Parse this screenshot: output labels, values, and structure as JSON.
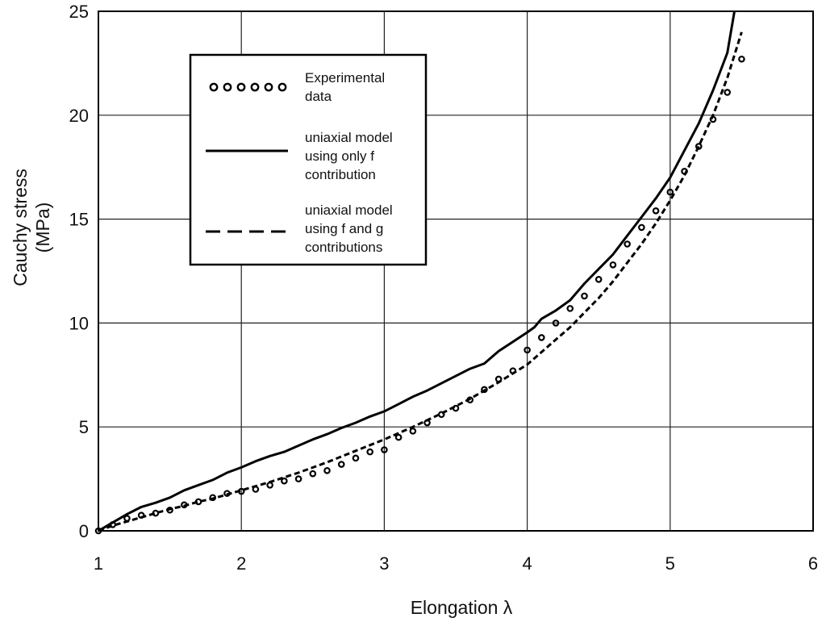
{
  "chart_data": {
    "type": "line",
    "title": "",
    "xlabel": "Elongation λ",
    "ylabel_lines": [
      "Cauchy stress",
      "(MPa)"
    ],
    "xlim": [
      1,
      6
    ],
    "ylim": [
      0,
      25
    ],
    "xticks": [
      "1",
      "2",
      "3",
      "4",
      "5",
      "6"
    ],
    "yticks": [
      "0",
      "5",
      "10",
      "15",
      "20",
      "25"
    ],
    "grid": true,
    "legend_position": "top-left",
    "legend": [
      {
        "style": "markers",
        "lines": [
          "Experimental",
          "data"
        ]
      },
      {
        "style": "solid",
        "lines": [
          "uniaxial model",
          "using only f",
          "contribution"
        ]
      },
      {
        "style": "dashed",
        "lines": [
          "uniaxial model",
          "using f and g",
          "contributions"
        ]
      }
    ],
    "series": [
      {
        "style": "markers",
        "x": [
          1.0,
          1.1,
          1.2,
          1.3,
          1.4,
          1.5,
          1.6,
          1.7,
          1.8,
          1.9,
          2.0,
          2.1,
          2.2,
          2.3,
          2.4,
          2.5,
          2.6,
          2.7,
          2.8,
          2.9,
          3.0,
          3.1,
          3.2,
          3.3,
          3.4,
          3.5,
          3.6,
          3.7,
          3.8,
          3.9,
          4.0,
          4.1,
          4.2,
          4.3,
          4.4,
          4.5,
          4.6,
          4.7,
          4.8,
          4.9,
          5.0,
          5.1,
          5.2,
          5.3,
          5.4,
          5.5
        ],
        "y": [
          0.0,
          0.3,
          0.6,
          0.75,
          0.85,
          1.0,
          1.25,
          1.4,
          1.6,
          1.8,
          1.9,
          2.0,
          2.2,
          2.4,
          2.5,
          2.75,
          2.9,
          3.2,
          3.5,
          3.8,
          3.9,
          4.5,
          4.8,
          5.2,
          5.6,
          5.9,
          6.3,
          6.8,
          7.3,
          7.7,
          8.7,
          9.3,
          10.0,
          10.7,
          11.3,
          12.1,
          12.8,
          13.8,
          14.6,
          15.4,
          16.3,
          17.3,
          18.5,
          19.8,
          21.1,
          22.7
        ]
      },
      {
        "style": "solid",
        "x": [
          1.0,
          1.1,
          1.2,
          1.3,
          1.4,
          1.5,
          1.6,
          1.7,
          1.8,
          1.9,
          2.0,
          2.1,
          2.2,
          2.3,
          2.4,
          2.5,
          2.6,
          2.7,
          2.8,
          2.9,
          3.0,
          3.1,
          3.2,
          3.3,
          3.4,
          3.5,
          3.6,
          3.7,
          3.8,
          3.9,
          4.0,
          4.05,
          4.1,
          4.2,
          4.3,
          4.4,
          4.5,
          4.6,
          4.7,
          4.8,
          4.9,
          5.0,
          5.1,
          5.2,
          5.3,
          5.4,
          5.45
        ],
        "y": [
          0.0,
          0.4,
          0.8,
          1.15,
          1.35,
          1.6,
          1.95,
          2.2,
          2.45,
          2.8,
          3.05,
          3.35,
          3.6,
          3.8,
          4.1,
          4.4,
          4.65,
          4.95,
          5.2,
          5.5,
          5.75,
          6.1,
          6.45,
          6.75,
          7.1,
          7.45,
          7.8,
          8.05,
          8.65,
          9.1,
          9.55,
          9.8,
          10.2,
          10.6,
          11.1,
          11.9,
          12.6,
          13.3,
          14.2,
          15.1,
          16.0,
          17.0,
          18.3,
          19.6,
          21.2,
          23.0,
          25.0
        ]
      },
      {
        "style": "dashed",
        "x": [
          1.0,
          1.1,
          1.2,
          1.3,
          1.4,
          1.5,
          1.6,
          1.7,
          1.8,
          1.9,
          2.0,
          2.2,
          2.4,
          2.6,
          2.8,
          3.0,
          3.2,
          3.4,
          3.6,
          3.8,
          4.0,
          4.1,
          4.2,
          4.3,
          4.4,
          4.5,
          4.6,
          4.7,
          4.8,
          4.9,
          5.0,
          5.1,
          5.2,
          5.3,
          5.4,
          5.5
        ],
        "y": [
          0.0,
          0.25,
          0.45,
          0.65,
          0.85,
          1.05,
          1.2,
          1.4,
          1.55,
          1.75,
          1.95,
          2.35,
          2.8,
          3.3,
          3.85,
          4.4,
          5.0,
          5.65,
          6.35,
          7.15,
          8.0,
          8.6,
          9.2,
          9.8,
          10.5,
          11.2,
          12.0,
          12.9,
          13.8,
          14.8,
          15.9,
          17.1,
          18.5,
          20.0,
          21.8,
          24.0
        ]
      }
    ]
  }
}
